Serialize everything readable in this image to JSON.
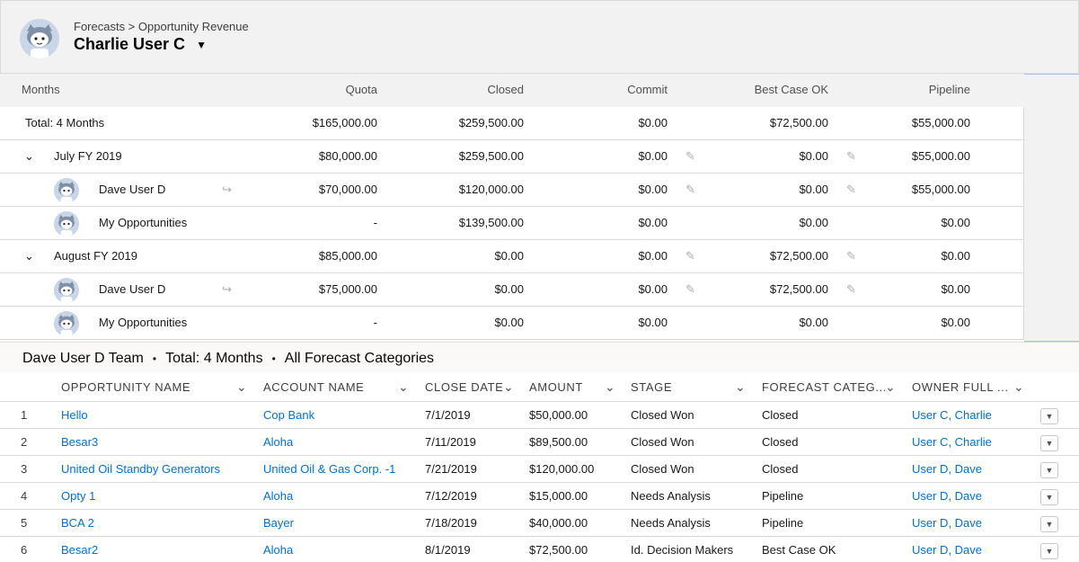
{
  "header": {
    "breadcrumb": "Forecasts > Opportunity Revenue",
    "user_name": "Charlie User C",
    "caret_icon": "triangle-down-icon"
  },
  "summary": {
    "columns": [
      "Months",
      "Quota",
      "Closed",
      "Commit",
      "Best Case OK",
      "Pipeline"
    ],
    "total": {
      "label": "Total: 4 Months",
      "quota": "$165,000.00",
      "closed": "$259,500.00",
      "commit": "$0.00",
      "best": "$72,500.00",
      "pipeline": "$55,000.00"
    },
    "rows": [
      {
        "label": "July FY 2019",
        "quota": "$80,000.00",
        "closed": "$259,500.00",
        "commit": "$0.00",
        "best": "$0.00",
        "pipeline": "$55,000.00"
      },
      {
        "label": "Dave User D",
        "quota": "$70,000.00",
        "closed": "$120,000.00",
        "commit": "$0.00",
        "best": "$0.00",
        "pipeline": "$55,000.00"
      },
      {
        "label": "My Opportunities",
        "quota": "-",
        "closed": "$139,500.00",
        "commit": "$0.00",
        "best": "$0.00",
        "pipeline": "$0.00"
      },
      {
        "label": "August FY 2019",
        "quota": "$85,000.00",
        "closed": "$0.00",
        "commit": "$0.00",
        "best": "$72,500.00",
        "pipeline": "$0.00"
      },
      {
        "label": "Dave User D",
        "quota": "$75,000.00",
        "closed": "$0.00",
        "commit": "$0.00",
        "best": "$72,500.00",
        "pipeline": "$0.00"
      },
      {
        "label": "My Opportunities",
        "quota": "-",
        "closed": "$0.00",
        "commit": "$0.00",
        "best": "$0.00",
        "pipeline": "$0.00"
      }
    ]
  },
  "teambar": {
    "team": "Dave User D Team",
    "period": "Total: 4 Months",
    "categories": "All Forecast Categories",
    "separator": "•"
  },
  "opportunities": {
    "columns": [
      "Opportunity Name",
      "Account Name",
      "Close Date",
      "Amount",
      "Stage",
      "Forecast Categ...",
      "Owner Full ..."
    ],
    "rows": [
      {
        "num": "1",
        "name": "Hello",
        "account": "Cop Bank",
        "date": "7/1/2019",
        "amount": "$50,000.00",
        "stage": "Closed Won",
        "forecast": "Closed",
        "owner": "User C, Charlie"
      },
      {
        "num": "2",
        "name": "Besar3",
        "account": "Aloha",
        "date": "7/11/2019",
        "amount": "$89,500.00",
        "stage": "Closed Won",
        "forecast": "Closed",
        "owner": "User C, Charlie"
      },
      {
        "num": "3",
        "name": "United Oil Standby Generators",
        "account": "United Oil & Gas Corp. -1",
        "date": "7/21/2019",
        "amount": "$120,000.00",
        "stage": "Closed Won",
        "forecast": "Closed",
        "owner": "User D, Dave"
      },
      {
        "num": "4",
        "name": "Opty 1",
        "account": "Aloha",
        "date": "7/12/2019",
        "amount": "$15,000.00",
        "stage": "Needs Analysis",
        "forecast": "Pipeline",
        "owner": "User D, Dave"
      },
      {
        "num": "5",
        "name": "BCA 2",
        "account": "Bayer",
        "date": "7/18/2019",
        "amount": "$40,000.00",
        "stage": "Needs Analysis",
        "forecast": "Pipeline",
        "owner": "User D, Dave"
      },
      {
        "num": "6",
        "name": "Besar2",
        "account": "Aloha",
        "date": "8/1/2019",
        "amount": "$72,500.00",
        "stage": "Id. Decision Makers",
        "forecast": "Best Case OK",
        "owner": "User D, Dave"
      }
    ]
  },
  "colors": {
    "link": "#0070d2",
    "header_bg": "#f3f2f2",
    "border": "#dddbda"
  }
}
